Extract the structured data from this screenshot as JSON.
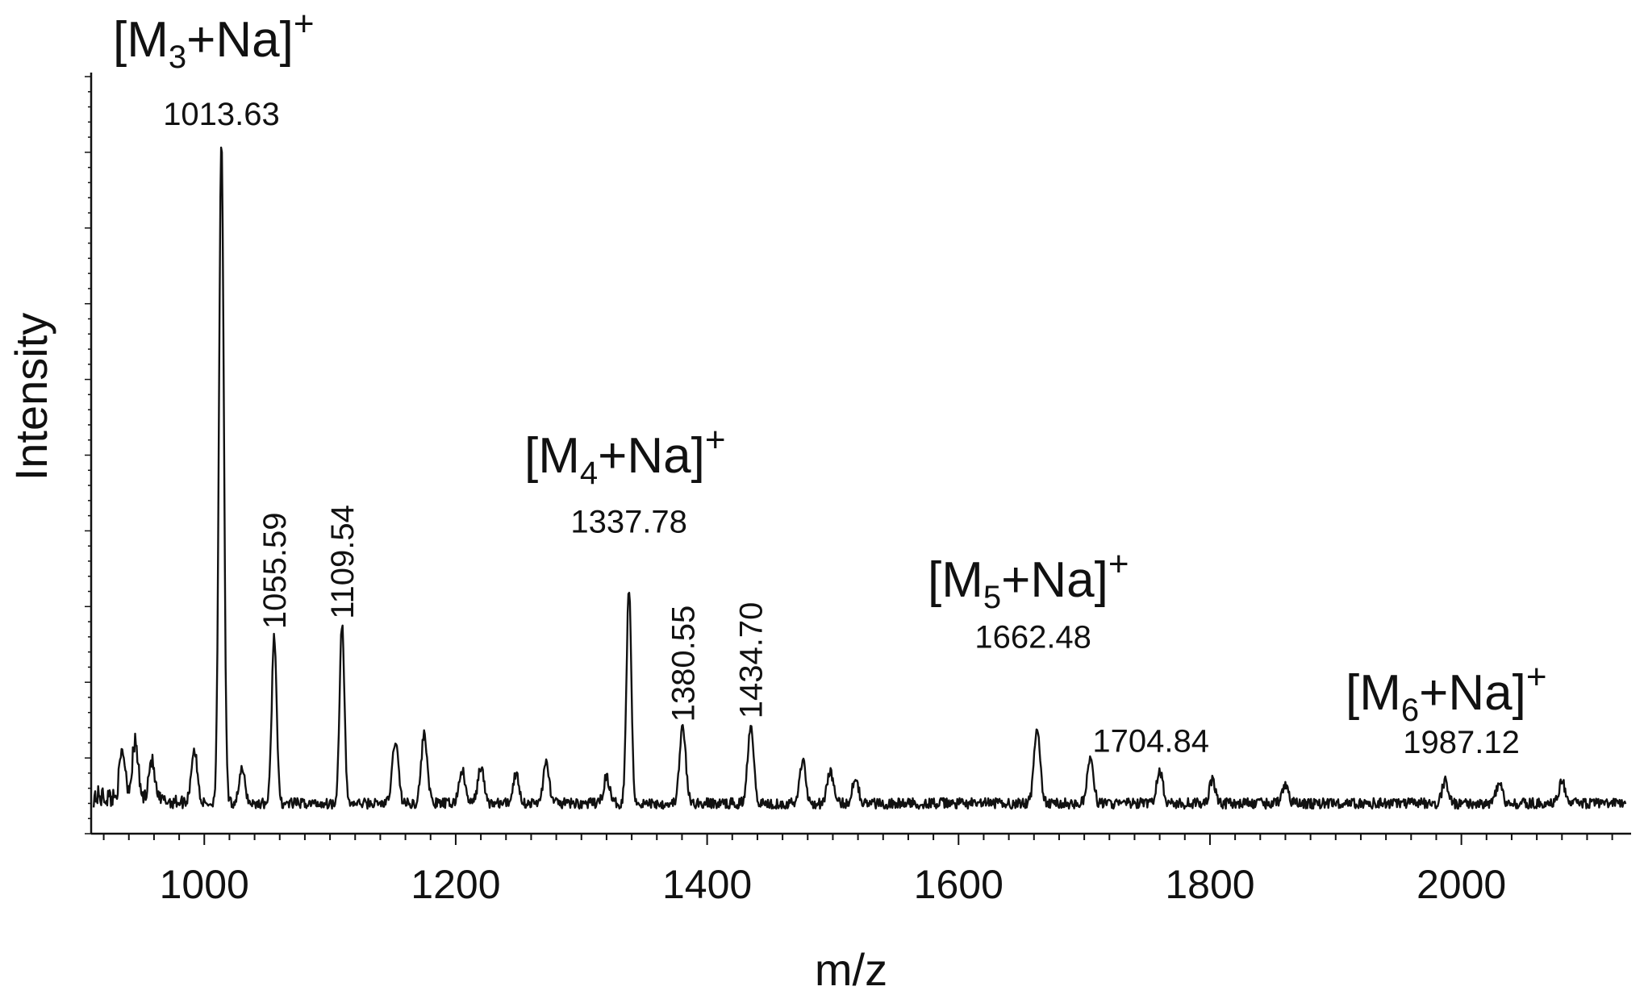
{
  "chart_data": {
    "type": "line",
    "title": "",
    "xlabel": "m/z",
    "ylabel": "Intensity",
    "xlim": [
      910,
      2135
    ],
    "ylim": [
      0,
      100
    ],
    "x_ticks": [
      1000,
      1200,
      1400,
      1600,
      1800,
      2000
    ],
    "y_tick_labels": false,
    "grid": false,
    "legend": "none",
    "line_color": "#111111",
    "peaks": [
      {
        "x": 1013.63,
        "y": 100.0,
        "label": "1013.63",
        "label_orientation": "horizontal"
      },
      {
        "x": 1055.59,
        "y": 25.5,
        "label": "1055.59",
        "label_orientation": "vertical"
      },
      {
        "x": 1109.54,
        "y": 27.0,
        "label": "1109.54",
        "label_orientation": "vertical"
      },
      {
        "x": 1337.78,
        "y": 32.5,
        "label": "1337.78",
        "label_orientation": "horizontal"
      },
      {
        "x": 1380.55,
        "y": 11.5,
        "label": "1380.55",
        "label_orientation": "vertical"
      },
      {
        "x": 1434.7,
        "y": 12.0,
        "label": "1434.70",
        "label_orientation": "vertical"
      },
      {
        "x": 1662.48,
        "y": 11.5,
        "label": "1662.48",
        "label_orientation": "horizontal"
      },
      {
        "x": 1704.84,
        "y": 7.0,
        "label": "1704.84",
        "label_orientation": "horizontal"
      },
      {
        "x": 1987.12,
        "y": 3.5,
        "label": "1987.12",
        "label_orientation": "horizontal"
      }
    ],
    "minor_peaks": [
      {
        "x": 935,
        "y": 7.0
      },
      {
        "x": 945,
        "y": 8.5
      },
      {
        "x": 958,
        "y": 6.0
      },
      {
        "x": 992,
        "y": 8.0
      },
      {
        "x": 1030,
        "y": 5.0
      },
      {
        "x": 1152,
        "y": 9.5
      },
      {
        "x": 1175,
        "y": 10.5
      },
      {
        "x": 1205,
        "y": 5.0
      },
      {
        "x": 1220,
        "y": 5.5
      },
      {
        "x": 1248,
        "y": 4.5
      },
      {
        "x": 1272,
        "y": 6.0
      },
      {
        "x": 1320,
        "y": 4.0
      },
      {
        "x": 1476,
        "y": 6.5
      },
      {
        "x": 1498,
        "y": 5.0
      },
      {
        "x": 1518,
        "y": 4.0
      },
      {
        "x": 1760,
        "y": 5.0
      },
      {
        "x": 1802,
        "y": 3.5
      },
      {
        "x": 1860,
        "y": 3.0
      },
      {
        "x": 2030,
        "y": 3.0
      },
      {
        "x": 2080,
        "y": 3.5
      }
    ],
    "annotations": [
      {
        "base": "[M",
        "sub": "3",
        "tail": "+Na]",
        "sup": "+",
        "x": 1013.63
      },
      {
        "base": "[M",
        "sub": "4",
        "tail": "+Na]",
        "sup": "+",
        "x": 1337.78
      },
      {
        "base": "[M",
        "sub": "5",
        "tail": "+Na]",
        "sup": "+",
        "x": 1662.48
      },
      {
        "base": "[M",
        "sub": "6",
        "tail": "+Na]",
        "sup": "+",
        "x": 1987.12
      }
    ]
  }
}
